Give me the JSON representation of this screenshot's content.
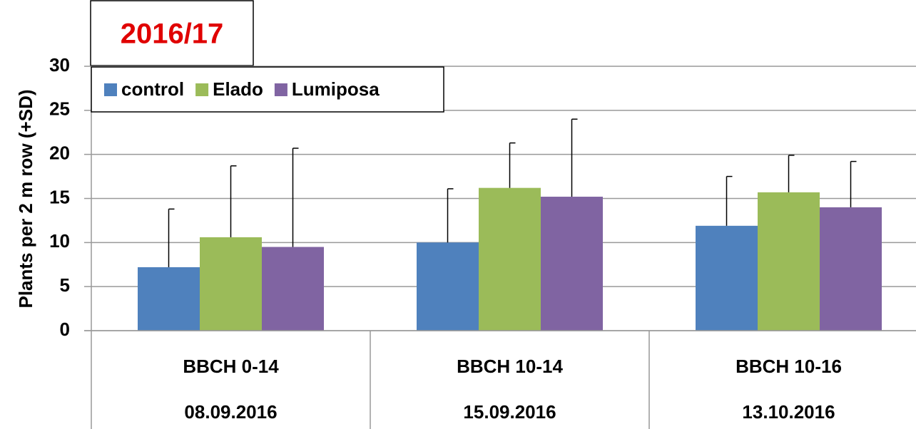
{
  "chart_data": {
    "type": "bar",
    "title": "2016/17",
    "y_label": "Plants per 2 m row (+SD)",
    "categories": [
      "BBCH 0-14",
      "BBCH 10-14",
      "BBCH 10-16"
    ],
    "dates": [
      "08.09.2016",
      "15.09.2016",
      "13.10.2016"
    ],
    "series": [
      {
        "name": "control",
        "color": "#4f81bd",
        "values": [
          7.2,
          10.0,
          11.9
        ],
        "errors": [
          6.6,
          6.1,
          5.6
        ]
      },
      {
        "name": "Elado",
        "color": "#9bbb59",
        "values": [
          10.6,
          16.2,
          15.7
        ],
        "errors": [
          8.1,
          5.1,
          4.2
        ]
      },
      {
        "name": "Lumiposa",
        "color": "#8064a2",
        "values": [
          9.5,
          15.2,
          14.0
        ],
        "errors": [
          11.2,
          8.8,
          5.2
        ]
      }
    ],
    "ylim": [
      0,
      30
    ],
    "yticks": [
      0,
      5,
      10,
      15,
      20,
      25,
      30
    ],
    "grid": true,
    "legend": "top-left"
  }
}
